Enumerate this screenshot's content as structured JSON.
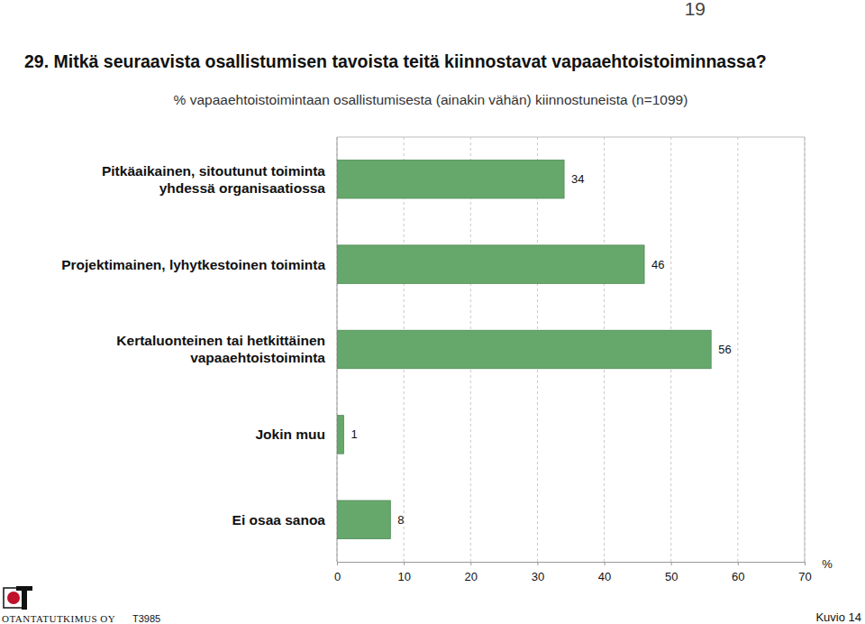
{
  "chart_data": {
    "type": "bar",
    "orientation": "horizontal",
    "title": "29. Mitkä seuraavista osallistumisen tavoista teitä kiinnostavat vapaaehtoistoiminnassa?",
    "subtitle": "% vapaaehtoistoimintaan osallistumisesta (ainakin vähän) kiinnostuneista (n=1099)",
    "xlabel": "%",
    "categories": [
      "Pitkäaikainen, sitoutunut toiminta\nyhdessä organisaatiossa",
      "Projektimainen, lyhytkestoinen toiminta",
      "Kertaluonteinen tai hetkittäinen\nvapaaehtoistoiminta",
      "Jokin muu",
      "Ei osaa sanoa"
    ],
    "values": [
      34,
      46,
      56,
      1,
      8
    ],
    "color": "#66a86b",
    "xlim": [
      0,
      70
    ],
    "xticks": [
      0,
      10,
      20,
      30,
      40,
      50,
      60,
      70
    ],
    "grid": true,
    "data_labels": true,
    "annotations": [
      "19",
      "OTANTATUTKIMUS OY",
      "T3985",
      "Kuvio 14"
    ]
  }
}
